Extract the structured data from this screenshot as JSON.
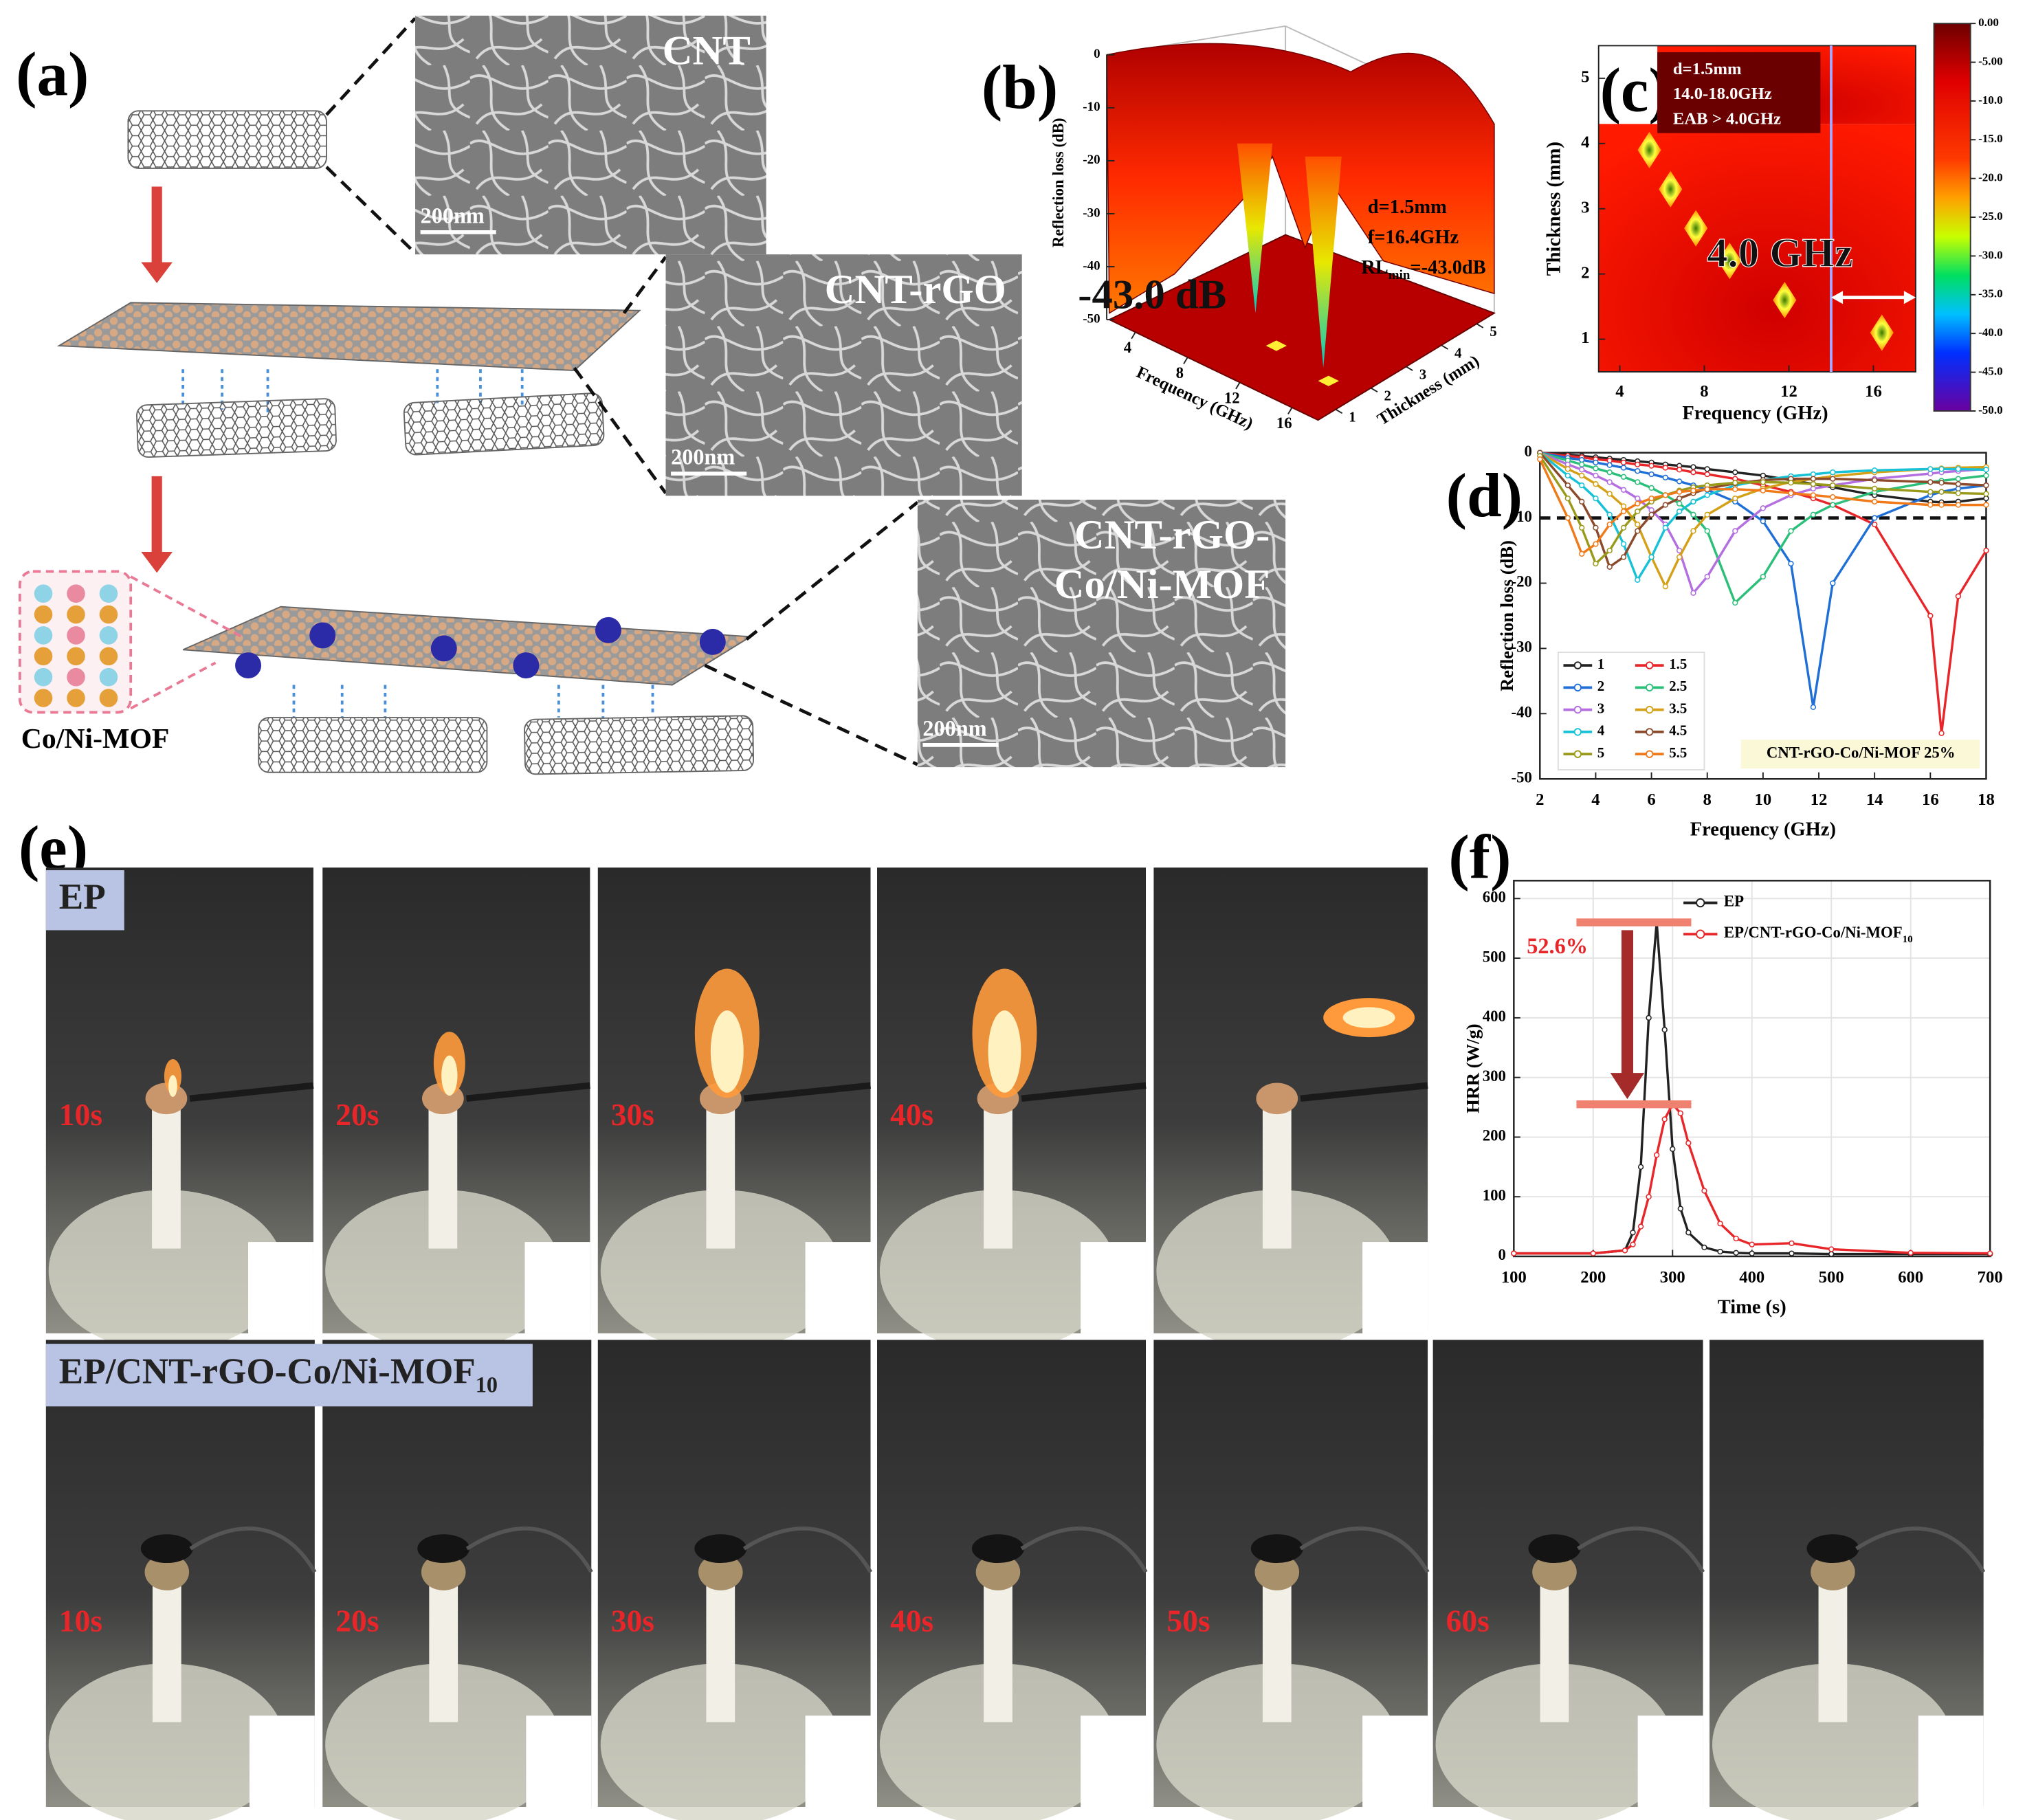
{
  "panel_labels": [
    "(a)",
    "(b)",
    "(c)",
    "(d)",
    "(e)",
    "(f)"
  ],
  "panel_a": {
    "micrographs": [
      {
        "title_lines": [
          "CNT"
        ],
        "scale_bar": "200nm"
      },
      {
        "title_lines": [
          "CNT-rGO"
        ],
        "scale_bar": "200nm"
      },
      {
        "title_lines": [
          "CNT-rGO-",
          "Co/Ni-MOF"
        ],
        "scale_bar": "200nm"
      }
    ],
    "mof_label": "Co/Ni-MOF"
  },
  "chart_data": [
    {
      "type": "surface3d",
      "z_label": "Reflection loss (dB)",
      "x_label": "Frequency (GHz)",
      "y_label": "Thickness (mm)",
      "zlim": [
        -50,
        0
      ],
      "zticks": [
        0,
        -10,
        -20,
        -30,
        -40,
        -50
      ],
      "xlim": [
        2,
        18
      ],
      "xticks": [
        4,
        8,
        12,
        16
      ],
      "ylim": [
        0.5,
        5.5
      ],
      "yticks": [
        1,
        2,
        3,
        4,
        5
      ],
      "annotations": [
        "d=1.5mm",
        "f=16.4GHz"
      ],
      "rl_min": {
        "text": "RL",
        "subscript": "min",
        "suffix": "=-43.0dB"
      },
      "callout": "-43.0 dB"
    },
    {
      "type": "heatmap",
      "x_label": "Frequency (GHz)",
      "y_label": "Thickness (mm)",
      "xlim": [
        3,
        18
      ],
      "xticks": [
        4,
        8,
        12,
        16
      ],
      "ylim": [
        0.5,
        5.5
      ],
      "yticks": [
        1,
        2,
        3,
        4,
        5
      ],
      "clim": [
        -50,
        0
      ],
      "cticks": [
        {
          "value": 0,
          "label": "0.00"
        },
        {
          "value": -5,
          "label": "-5.00"
        },
        {
          "value": -10,
          "label": "-10.0"
        },
        {
          "value": -15,
          "label": "-15.0"
        },
        {
          "value": -20,
          "label": "-20.0"
        },
        {
          "value": -25,
          "label": "-25.0"
        },
        {
          "value": -30,
          "label": "-30.0"
        },
        {
          "value": -35,
          "label": "-35.0"
        },
        {
          "value": -40,
          "label": "-40.0"
        },
        {
          "value": -45,
          "label": "-45.0"
        },
        {
          "value": -50,
          "label": "-50.0"
        }
      ],
      "annotations": [
        "d=1.5mm",
        "14.0-18.0GHz",
        "EAB > 4.0GHz"
      ],
      "band": [
        14,
        18
      ],
      "band_label": "4.0 GHz",
      "minima": {
        "x": [
          16.4,
          11.8,
          9.2,
          7.6,
          6.4,
          5.4
        ],
        "y": [
          1.1,
          1.6,
          2.2,
          2.7,
          3.3,
          3.9
        ]
      }
    },
    {
      "type": "line",
      "x_label": "Frequency (GHz)",
      "y_label": "Reflection loss (dB)",
      "xlim": [
        2,
        18
      ],
      "xticks": [
        2,
        4,
        6,
        8,
        10,
        12,
        14,
        16,
        18
      ],
      "ylim": [
        -50,
        0
      ],
      "yticks": [
        0,
        -10,
        -20,
        -30,
        -40,
        -50
      ],
      "reference_y": -10,
      "legend": "lower left",
      "grid": false,
      "inset_label": "CNT-rGO-Co/Ni-MOF 25%",
      "x": [
        2,
        3,
        3.5,
        4,
        4.5,
        5,
        5.5,
        6,
        6.5,
        7,
        7.5,
        8,
        9,
        10,
        11,
        11.8,
        12.5,
        14,
        16,
        16.4,
        17,
        18
      ],
      "series": [
        {
          "name": "1",
          "color": "#222222",
          "values": [
            0,
            -0.3,
            -0.5,
            -0.7,
            -0.9,
            -1.1,
            -1.3,
            -1.5,
            -1.8,
            -2,
            -2.2,
            -2.5,
            -3,
            -3.5,
            -4.2,
            -4.8,
            -5.3,
            -6.5,
            -7.5,
            -7.6,
            -7.5,
            -7
          ]
        },
        {
          "name": "1.5",
          "color": "#e8262a",
          "values": [
            0,
            -0.5,
            -0.7,
            -1,
            -1.2,
            -1.5,
            -1.8,
            -2,
            -2.3,
            -2.6,
            -3,
            -3.3,
            -4,
            -5,
            -6,
            -7,
            -8,
            -11,
            -25,
            -43,
            -22,
            -15
          ]
        },
        {
          "name": "2",
          "color": "#1f6fd6",
          "values": [
            0,
            -0.8,
            -1.1,
            -1.5,
            -1.9,
            -2.3,
            -2.8,
            -3.3,
            -3.8,
            -4.4,
            -5,
            -5.7,
            -7.5,
            -10.5,
            -17,
            -39,
            -20,
            -10,
            -6.5,
            -6,
            -5.5,
            -5
          ]
        },
        {
          "name": "2.5",
          "color": "#2bbf7a",
          "values": [
            0,
            -1.2,
            -1.8,
            -2.4,
            -3,
            -3.7,
            -4.5,
            -5.4,
            -6.5,
            -7.8,
            -9.5,
            -12,
            -23,
            -19,
            -12,
            -9.5,
            -8,
            -6,
            -4.5,
            -4.3,
            -4,
            -3.5
          ]
        },
        {
          "name": "3",
          "color": "#b36ee0",
          "values": [
            0,
            -1.8,
            -2.6,
            -3.5,
            -4.5,
            -5.7,
            -7,
            -8.8,
            -11,
            -15,
            -21.5,
            -19,
            -12,
            -8.5,
            -6.5,
            -5.5,
            -5,
            -4,
            -3.2,
            -3,
            -2.8,
            -2.5
          ]
        },
        {
          "name": "3.5",
          "color": "#d4a017",
          "values": [
            0,
            -2.5,
            -3.5,
            -4.8,
            -6.3,
            -8.2,
            -11,
            -16,
            -20.5,
            -16,
            -12,
            -9.5,
            -7,
            -5.5,
            -4.5,
            -4,
            -3.6,
            -3,
            -2.5,
            -2.4,
            -2.3,
            -2.2
          ]
        },
        {
          "name": "4",
          "color": "#17c2d6",
          "values": [
            0,
            -3.5,
            -5,
            -7,
            -9.5,
            -14,
            -19.5,
            -16,
            -11.5,
            -9,
            -7.5,
            -6.5,
            -5,
            -4.2,
            -3.6,
            -3.3,
            -3,
            -2.7,
            -2.5,
            -2.5,
            -2.5,
            -2.6
          ]
        },
        {
          "name": "4.5",
          "color": "#8b4a2b",
          "values": [
            0,
            -5,
            -7.5,
            -11.5,
            -17.5,
            -16,
            -12,
            -9.5,
            -8,
            -7,
            -6.2,
            -5.5,
            -4.7,
            -4.2,
            -4,
            -4,
            -4,
            -4.2,
            -4.5,
            -4.6,
            -4.8,
            -5
          ]
        },
        {
          "name": "5",
          "color": "#9a9a1a",
          "values": [
            -0.5,
            -7,
            -11.5,
            -17,
            -15,
            -11.5,
            -9,
            -7.5,
            -6.5,
            -5.8,
            -5.3,
            -5,
            -4.6,
            -4.5,
            -4.6,
            -4.8,
            -5,
            -5.5,
            -6,
            -6,
            -6.2,
            -6.3
          ]
        },
        {
          "name": "5.5",
          "color": "#f07a1a",
          "values": [
            -1,
            -10,
            -15.5,
            -14,
            -11,
            -9,
            -7.8,
            -7,
            -6.5,
            -6,
            -5.8,
            -5.6,
            -5.6,
            -5.8,
            -6.2,
            -6.5,
            -6.8,
            -7.5,
            -8,
            -8,
            -8,
            -8
          ]
        }
      ]
    },
    {
      "type": "line",
      "x_label": "Time (s)",
      "y_label": "HRR (W/g)",
      "xlim": [
        100,
        700
      ],
      "xticks": [
        100,
        200,
        300,
        400,
        500,
        600,
        700
      ],
      "ylim": [
        0,
        630
      ],
      "yticks": [
        0,
        100,
        200,
        300,
        400,
        500,
        600
      ],
      "legend": "upper right",
      "grid": true,
      "annotation": "52.6%",
      "x": [
        100,
        200,
        240,
        250,
        260,
        270,
        280,
        290,
        300,
        310,
        320,
        340,
        360,
        380,
        400,
        450,
        500,
        600,
        700
      ],
      "series": [
        {
          "name": "EP",
          "color": "#222222",
          "values": [
            5,
            5,
            10,
            40,
            150,
            400,
            560,
            380,
            180,
            80,
            40,
            15,
            8,
            6,
            5,
            5,
            4,
            4,
            4
          ]
        },
        {
          "name": "EP/CNT-rGO-Co/Ni-MOF",
          "name_subscript": "10",
          "color": "#e8262a",
          "values": [
            5,
            5,
            10,
            20,
            50,
            100,
            170,
            230,
            255,
            240,
            190,
            110,
            55,
            30,
            20,
            22,
            12,
            6,
            5
          ]
        }
      ]
    }
  ],
  "panel_e": {
    "rows": [
      {
        "label": "EP",
        "frame_labels": [
          "10s",
          "20s",
          "30s",
          "40s",
          null
        ]
      },
      {
        "label": "EP/CNT-rGO-Co/Ni-MOF",
        "label_subscript": "10",
        "frame_labels": [
          "10s",
          "20s",
          "30s",
          "40s",
          "50s",
          "60s",
          null
        ]
      }
    ]
  }
}
